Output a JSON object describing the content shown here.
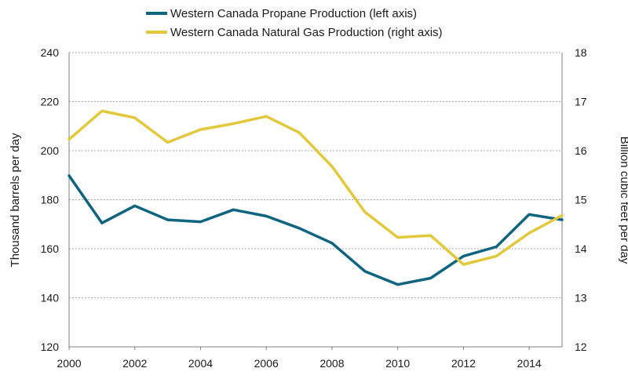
{
  "chart_data": {
    "type": "line",
    "x": [
      2000,
      2001,
      2002,
      2003,
      2004,
      2005,
      2006,
      2007,
      2008,
      2009,
      2010,
      2011,
      2012,
      2013,
      2014,
      2015
    ],
    "x_tick_labels": [
      "2000",
      "2002",
      "2004",
      "2006",
      "2008",
      "2010",
      "2012",
      "2014"
    ],
    "xlim": [
      2000,
      2015
    ],
    "y_left": {
      "label": "Thousand barrels per day",
      "lim": [
        120,
        240
      ],
      "ticks": [
        "120",
        "140",
        "160",
        "180",
        "200",
        "220",
        "240"
      ]
    },
    "y_right": {
      "label": "Billion cubic feet per day",
      "lim": [
        12,
        18
      ],
      "ticks": [
        "12",
        "13",
        "14",
        "15",
        "16",
        "17",
        "18"
      ]
    },
    "grid": "horizontal dotted",
    "legend_position": "top",
    "series": [
      {
        "name": "Western Canada Propane Production (left axis)",
        "axis": "left",
        "color": "#0f6480",
        "values": [
          189.8,
          170.5,
          177.5,
          171.8,
          171.0,
          175.9,
          173.3,
          168.4,
          162.3,
          150.8,
          145.4,
          148.0,
          157.0,
          160.8,
          174.0,
          171.8
        ]
      },
      {
        "name": "Western Canada Natural Gas Production (right axis)",
        "axis": "right",
        "color": "#e2c83c",
        "values": [
          16.23,
          16.81,
          16.67,
          16.17,
          16.43,
          16.55,
          16.7,
          16.37,
          15.68,
          14.75,
          14.23,
          14.27,
          13.68,
          13.85,
          14.32,
          14.68
        ]
      }
    ]
  }
}
